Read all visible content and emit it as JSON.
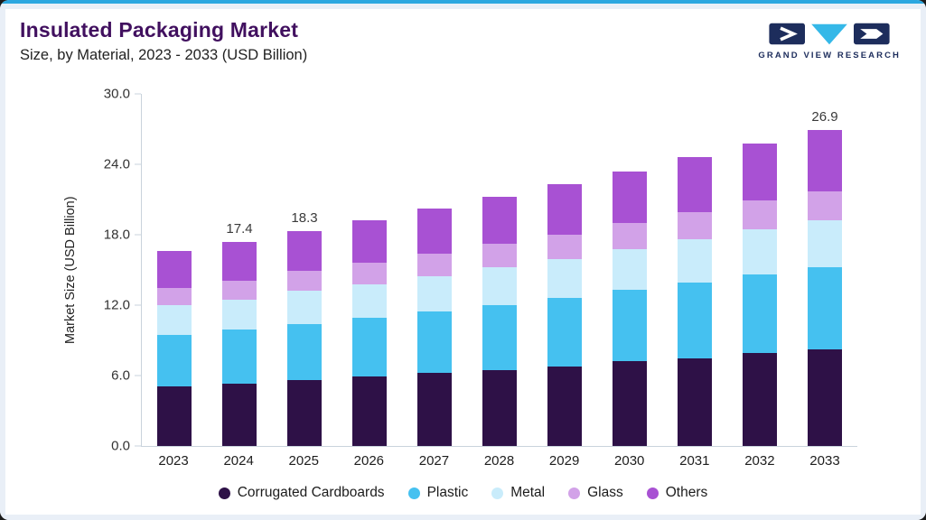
{
  "page": {
    "title": "Insulated Packaging Market",
    "subtitle": "Size, by Material, 2023 - 2033 (USD Billion)"
  },
  "brand": {
    "name": "GRAND VIEW RESEARCH",
    "navy": "#1d2d5c",
    "cyan": "#35b8e8"
  },
  "colors": {
    "top_accent": "#2ba7e0",
    "frame_band": "#e9eff7",
    "title_purple": "#41105f",
    "axis_line": "#c9d3dc"
  },
  "chart_data": {
    "type": "bar",
    "stacked": true,
    "title": "Insulated Packaging Market Size, by Material, 2023 - 2033 (USD Billion)",
    "ylabel": "Market Size (USD Billion)",
    "ylim": [
      0,
      30
    ],
    "yticks": [
      "0.0",
      "6.0",
      "12.0",
      "18.0",
      "24.0",
      "30.0"
    ],
    "grid": false,
    "legend_position": "bottom",
    "categories": [
      "2023",
      "2024",
      "2025",
      "2026",
      "2027",
      "2028",
      "2029",
      "2030",
      "2031",
      "2032",
      "2033"
    ],
    "series": [
      {
        "name": "Corrugated Cardboards",
        "color": "#2e1147",
        "values": [
          5.1,
          5.3,
          5.6,
          5.9,
          6.2,
          6.5,
          6.8,
          7.2,
          7.5,
          7.9,
          8.2
        ]
      },
      {
        "name": "Plastic",
        "color": "#45c1f0",
        "values": [
          4.4,
          4.6,
          4.8,
          5.0,
          5.3,
          5.5,
          5.8,
          6.1,
          6.4,
          6.7,
          7.0
        ]
      },
      {
        "name": "Metal",
        "color": "#c9ecfb",
        "values": [
          2.5,
          2.6,
          2.8,
          2.9,
          3.0,
          3.2,
          3.3,
          3.5,
          3.7,
          3.9,
          4.0
        ]
      },
      {
        "name": "Glass",
        "color": "#d2a2e8",
        "values": [
          1.5,
          1.6,
          1.7,
          1.8,
          1.9,
          2.0,
          2.1,
          2.2,
          2.3,
          2.4,
          2.5
        ]
      },
      {
        "name": "Others",
        "color": "#a851d3",
        "values": [
          3.1,
          3.3,
          3.4,
          3.6,
          3.8,
          4.0,
          4.3,
          4.4,
          4.7,
          4.9,
          5.2
        ]
      }
    ],
    "totals": [
      16.6,
      17.4,
      18.3,
      19.2,
      20.2,
      21.2,
      22.3,
      23.4,
      24.6,
      25.8,
      26.9
    ],
    "bar_value_labels": [
      null,
      "17.4",
      "18.3",
      null,
      null,
      null,
      null,
      null,
      null,
      null,
      "26.9"
    ]
  }
}
